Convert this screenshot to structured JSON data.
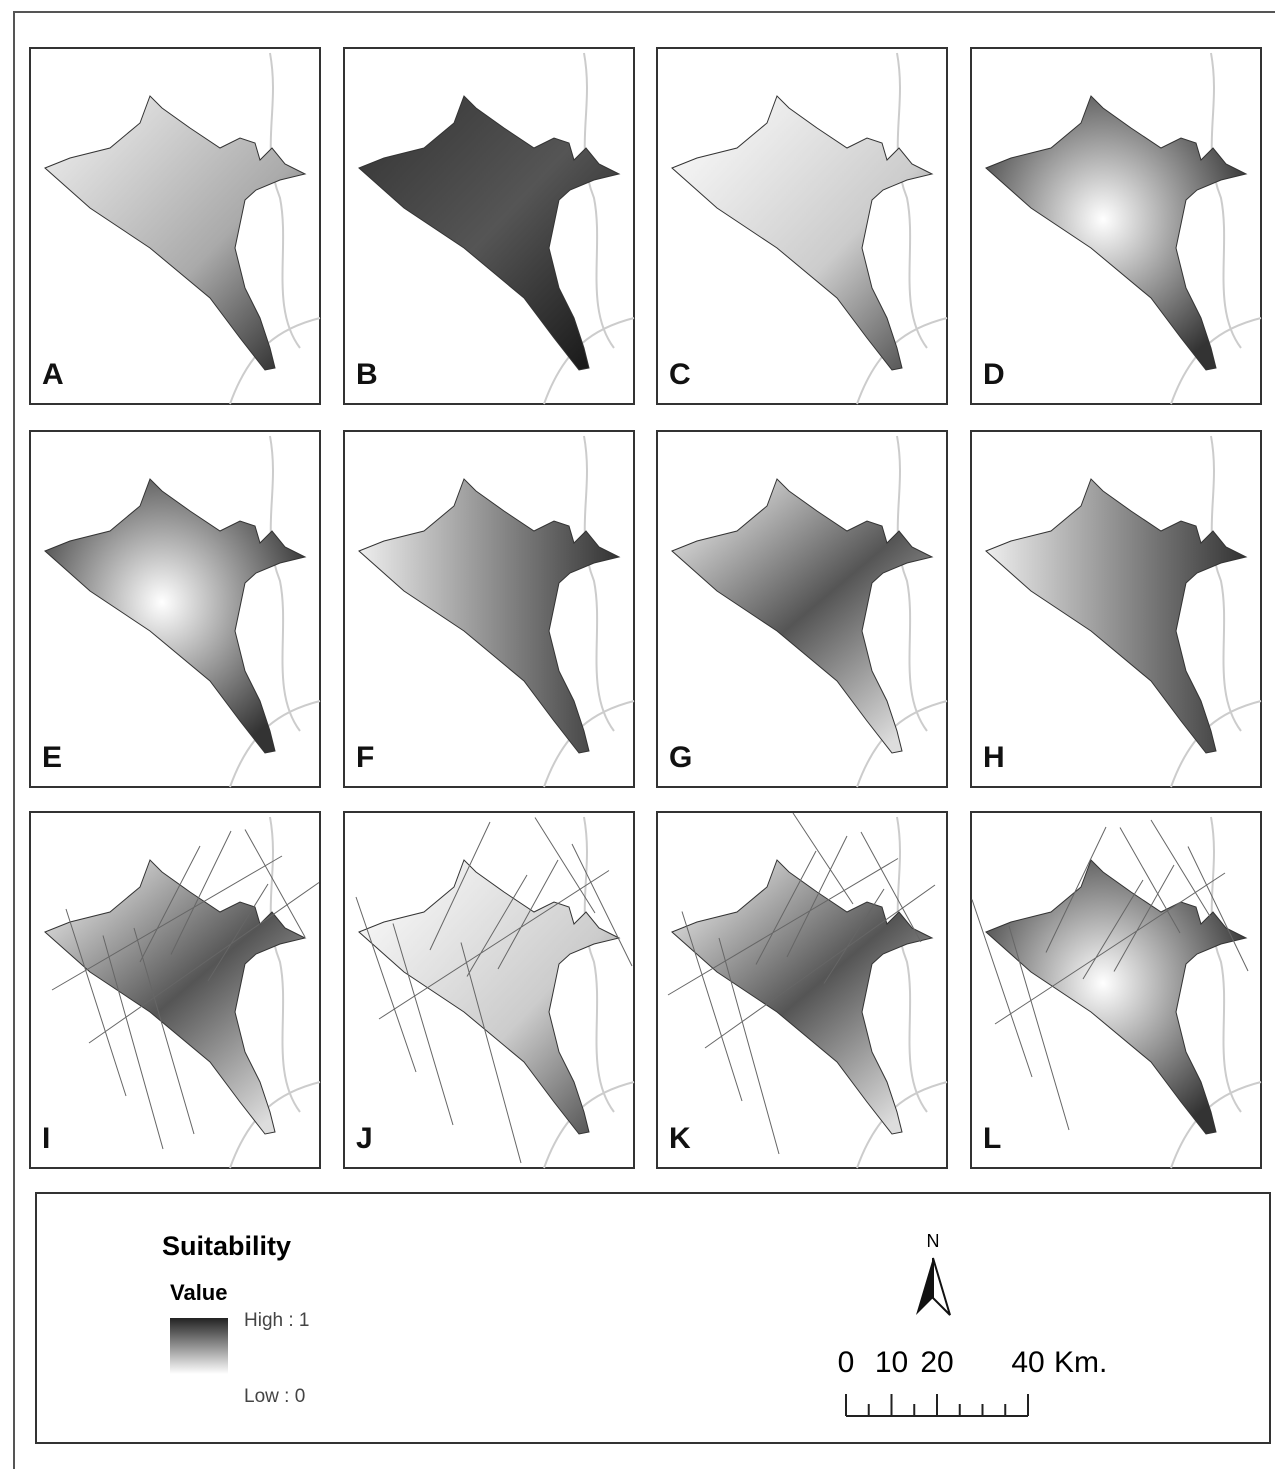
{
  "panels": [
    "A",
    "B",
    "C",
    "D",
    "E",
    "F",
    "G",
    "H",
    "I",
    "J",
    "K",
    "L"
  ],
  "legend": {
    "title": "Suitability",
    "subtitle": "Value",
    "high": "High : 1",
    "low": "Low : 0"
  },
  "north_arrow": {
    "label": "N"
  },
  "scale_bar": {
    "ticks": [
      0,
      10,
      20,
      40
    ],
    "unit": "Km."
  }
}
